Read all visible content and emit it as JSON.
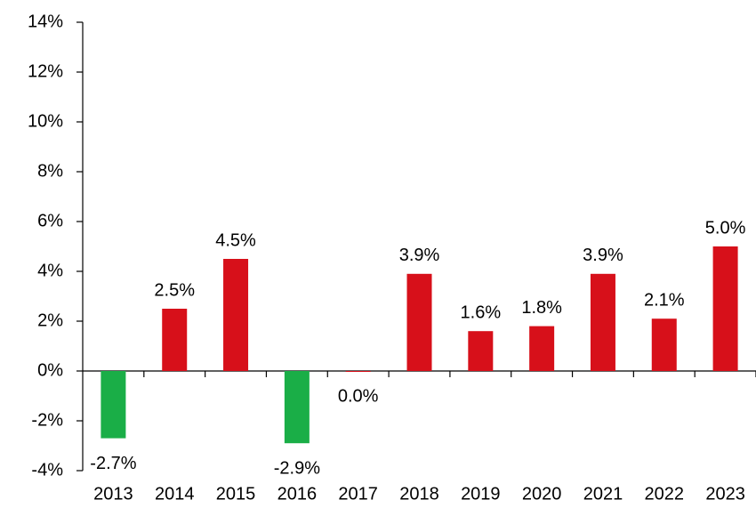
{
  "chart_data": {
    "type": "bar",
    "categories": [
      "2013",
      "2014",
      "2015",
      "2016",
      "2017",
      "2018",
      "2019",
      "2020",
      "2021",
      "2022",
      "2023"
    ],
    "values": [
      -2.7,
      2.5,
      4.5,
      -2.9,
      0.0,
      3.9,
      1.6,
      1.8,
      3.9,
      2.1,
      5.0
    ],
    "value_labels": [
      "-2.7%",
      "2.5%",
      "4.5%",
      "-2.9%",
      "0.0%",
      "3.9%",
      "1.6%",
      "1.8%",
      "3.9%",
      "2.1%",
      "5.0%"
    ],
    "colors": [
      "#1aae47",
      "#d7101a",
      "#d7101a",
      "#1aae47",
      "#d7101a",
      "#d7101a",
      "#d7101a",
      "#d7101a",
      "#d7101a",
      "#d7101a",
      "#d7101a"
    ],
    "ylim": [
      -4,
      14
    ],
    "yticks": [
      {
        "value": -4,
        "label": "-4%"
      },
      {
        "value": -2,
        "label": "-2%"
      },
      {
        "value": 0,
        "label": "0%"
      },
      {
        "value": 2,
        "label": "2%"
      },
      {
        "value": 4,
        "label": "4%"
      },
      {
        "value": 6,
        "label": "6%"
      },
      {
        "value": 8,
        "label": "8%"
      },
      {
        "value": 10,
        "label": "10%"
      },
      {
        "value": 12,
        "label": "12%"
      },
      {
        "value": 14,
        "label": "14%"
      }
    ]
  }
}
